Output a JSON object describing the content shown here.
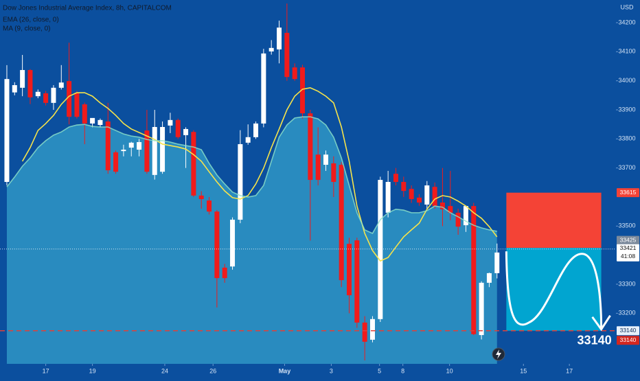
{
  "chart_data": {
    "type": "candlestick",
    "title": "Dow Jones Industrial Average Index, 8h, CAPITALCOM",
    "currency": "USD",
    "up_color": "#ffffff",
    "down_color": "#f01b1b",
    "ylim": [
      33026,
      34278
    ],
    "yticks": [
      33200,
      33300,
      33500,
      33700,
      33800,
      33900,
      34000,
      34100,
      34200
    ],
    "xlim": [
      -0.88,
      78.29
    ],
    "xticks": [
      {
        "value": 5,
        "label": "17"
      },
      {
        "value": 11,
        "label": "19"
      },
      {
        "value": 20.3,
        "label": "24"
      },
      {
        "value": 26.5,
        "label": "26"
      },
      {
        "value": 35.7,
        "label": "May"
      },
      {
        "value": 41.7,
        "label": "3"
      },
      {
        "value": 47.9,
        "label": "5"
      },
      {
        "value": 50.9,
        "label": "8"
      },
      {
        "value": 56.9,
        "label": "10"
      },
      {
        "value": 66.4,
        "label": "15"
      },
      {
        "value": 72.3,
        "label": "17"
      }
    ],
    "candles": [
      [
        33652,
        34054,
        33640,
        34006
      ],
      [
        33960,
        33995,
        33950,
        33985
      ],
      [
        33976,
        34089,
        33947,
        34037
      ],
      [
        34037,
        34040,
        33920,
        33943
      ],
      [
        33947,
        33970,
        33940,
        33962
      ],
      [
        33957,
        33965,
        33915,
        33924
      ],
      [
        33924,
        33985,
        33900,
        33976
      ],
      [
        33976,
        34054,
        33970,
        33994
      ],
      [
        33999,
        34131,
        33850,
        33876
      ],
      [
        33959,
        33965,
        33870,
        33876
      ],
      [
        33919,
        33925,
        33782,
        33853
      ],
      [
        33853,
        33870,
        33840,
        33872
      ],
      [
        33848,
        33870,
        33840,
        33865
      ],
      [
        33860,
        33924,
        33680,
        33692
      ],
      [
        33754,
        33760,
        33680,
        33687
      ],
      [
        33758,
        33780,
        33740,
        33763
      ],
      [
        33770,
        33790,
        33740,
        33787
      ],
      [
        33763,
        33800,
        33740,
        33789
      ],
      [
        33829,
        33900,
        33680,
        33687
      ],
      [
        33676,
        33900,
        33660,
        33841
      ],
      [
        33687,
        33860,
        33680,
        33841
      ],
      [
        33846,
        33890,
        33820,
        33865
      ],
      [
        33865,
        33870,
        33800,
        33806
      ],
      [
        33813,
        33840,
        33700,
        33834
      ],
      [
        33824,
        33830,
        33600,
        33605
      ],
      [
        33605,
        33620,
        33560,
        33593
      ],
      [
        33588,
        33600,
        33540,
        33550
      ],
      [
        33550,
        33555,
        33220,
        33321
      ],
      [
        33357,
        33370,
        33305,
        33321
      ],
      [
        33361,
        33530,
        33350,
        33522
      ],
      [
        33522,
        33830,
        33510,
        33782
      ],
      [
        33787,
        33850,
        33780,
        33806
      ],
      [
        33806,
        33860,
        33800,
        33853
      ],
      [
        33853,
        34110,
        33840,
        34094
      ],
      [
        34101,
        34140,
        34090,
        34113
      ],
      [
        34108,
        34207,
        34060,
        34183
      ],
      [
        34165,
        34266,
        34000,
        34013
      ],
      [
        34046,
        34060,
        34000,
        34006
      ],
      [
        34046,
        34055,
        33870,
        33888
      ],
      [
        33888,
        33900,
        33450,
        33659
      ],
      [
        33746,
        33840,
        33640,
        33659
      ],
      [
        33711,
        33760,
        33690,
        33746
      ],
      [
        33716,
        33740,
        33600,
        33652
      ],
      [
        33711,
        33720,
        33290,
        33314
      ],
      [
        33439,
        33460,
        33200,
        33262
      ],
      [
        33451,
        33460,
        33150,
        33168
      ],
      [
        33168,
        33190,
        33038,
        33102
      ],
      [
        33109,
        33190,
        33100,
        33180
      ],
      [
        33180,
        33670,
        33170,
        33659
      ],
      [
        33546,
        33690,
        33530,
        33652
      ],
      [
        33680,
        33700,
        33640,
        33652
      ],
      [
        33652,
        33670,
        33600,
        33621
      ],
      [
        33628,
        33640,
        33580,
        33593
      ],
      [
        33598,
        33610,
        33570,
        33581
      ],
      [
        33574,
        33655,
        33560,
        33640
      ],
      [
        33635,
        33650,
        33560,
        33569
      ],
      [
        33581,
        33700,
        33500,
        33558
      ],
      [
        33569,
        33690,
        33520,
        33546
      ],
      [
        33546,
        33560,
        33470,
        33498
      ],
      [
        33503,
        33570,
        33480,
        33569
      ],
      [
        33569,
        33580,
        33125,
        33128
      ],
      [
        33125,
        33310,
        33110,
        33305
      ],
      [
        33305,
        33340,
        33290,
        33338
      ],
      [
        33338,
        33440,
        33320,
        33409
      ]
    ],
    "series": [
      {
        "name": "EMA (26, close, 0)",
        "color": "#f7e44a",
        "values": [
          null,
          null,
          33723,
          33770,
          33829,
          33853,
          33881,
          33919,
          33947,
          33959,
          33959,
          33947,
          33924,
          33905,
          33881,
          33853,
          33834,
          33822,
          33810,
          33798,
          33782,
          33777,
          33772,
          33765,
          33746,
          33723,
          33687,
          33652,
          33621,
          33598,
          33593,
          33605,
          33645,
          33699,
          33770,
          33834,
          33900,
          33947,
          33971,
          33976,
          33964,
          33947,
          33924,
          33841,
          33723,
          33569,
          33475,
          33416,
          33380,
          33392,
          33428,
          33463,
          33487,
          33510,
          33558,
          33593,
          33605,
          33600,
          33586,
          33569,
          33546,
          33527,
          33498,
          33463
        ]
      },
      {
        "name": "MA (9, close, 0)",
        "color": "#8fe3c9",
        "fill": "#2f95c4",
        "values": [
          33635,
          33669,
          33706,
          33735,
          33770,
          33794,
          33813,
          33824,
          33841,
          33848,
          33850,
          33843,
          33841,
          33841,
          33829,
          33817,
          33810,
          33806,
          33798,
          33794,
          33794,
          33789,
          33782,
          33777,
          33772,
          33763,
          33716,
          33676,
          33645,
          33617,
          33605,
          33600,
          33605,
          33640,
          33723,
          33806,
          33848,
          33872,
          33876,
          33876,
          33869,
          33848,
          33806,
          33735,
          33640,
          33546,
          33487,
          33475,
          33522,
          33546,
          33558,
          33555,
          33546,
          33546,
          33553,
          33569,
          33565,
          33546,
          33532,
          33517,
          33503,
          33494,
          33487,
          33482
        ]
      }
    ],
    "position": {
      "stop": 33615,
      "entry": 33425,
      "target": 33140,
      "stop_color": "#f44336",
      "target_color": "#00b4d8"
    },
    "last_price": 33421,
    "countdown": "41:08"
  }
}
